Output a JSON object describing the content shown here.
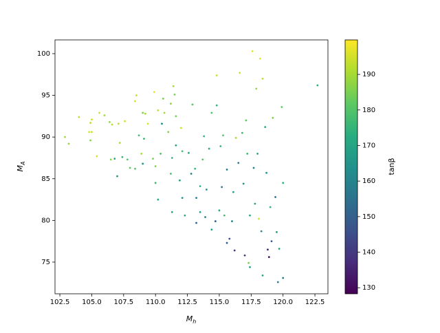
{
  "chart_data": {
    "type": "scatter",
    "xlabel": {
      "text": "M",
      "sub": "h"
    },
    "ylabel": {
      "text": "M",
      "sub": "A"
    },
    "colorbar_label": "tanβ",
    "colormap": "viridis",
    "xlim": [
      102.12,
      123.52
    ],
    "ylim": [
      71.2,
      101.65
    ],
    "clim": [
      128.3,
      199.7
    ],
    "xticks": [
      102.5,
      {
        "value": 105,
        "label": "105.0"
      },
      107.5,
      {
        "value": 110,
        "label": "110.0"
      },
      112.5,
      {
        "value": 115,
        "label": "115.0"
      },
      117.5,
      {
        "value": 120,
        "label": "120.0"
      },
      122.5
    ],
    "yticks": [
      75,
      80,
      85,
      90,
      95,
      100
    ],
    "cticks": [
      130,
      140,
      150,
      160,
      170,
      180,
      190
    ],
    "x": [
      102.9,
      103.2,
      104,
      104.8,
      105,
      104.9,
      105,
      104.9,
      105.4,
      105.6,
      106,
      106.4,
      106.6,
      107.1,
      106.5,
      107.2,
      107.6,
      106.8,
      107.0,
      107.4,
      107.8,
      108,
      108.4,
      108.4,
      108.5,
      108.7,
      108.9,
      109,
      109,
      109.2,
      109.1,
      109.4,
      109.8,
      109.9,
      110,
      110,
      110.2,
      110.2,
      110.4,
      110.5,
      110.6,
      110.7,
      111,
      111.2,
      111.3,
      111.3,
      111.4,
      111.5,
      111.6,
      111.2,
      111.6,
      111.9,
      112,
      112.1,
      112.1,
      112.3,
      112.6,
      112.8,
      112.9,
      113.1,
      113.2,
      113.2,
      113.5,
      113.5,
      113.7,
      113.8,
      113.9,
      114,
      114.2,
      114.4,
      114.4,
      114.7,
      114.8,
      114.8,
      115,
      115.1,
      115.3,
      115.4,
      115.6,
      115.6,
      115.8,
      116,
      116.1,
      116.2,
      116.3,
      116.5,
      116.6,
      116.9,
      117,
      117.1,
      117.2,
      117.3,
      117.4,
      117.6,
      117.7,
      117.8,
      117.9,
      118,
      118.1,
      118.2,
      118.3,
      118.4,
      118.6,
      118.7,
      118.8,
      118.9,
      119,
      119.2,
      119.4,
      119.5,
      119.6,
      119.7,
      119.9,
      120,
      120,
      122.7,
      118.4,
      119.1,
      117.4,
      116.8,
      115.2
    ],
    "values": [
      90,
      89.2,
      92.4,
      90.6,
      90.6,
      91.7,
      92.1,
      89.6,
      87.7,
      92.9,
      92.6,
      91.8,
      91.5,
      91.6,
      87.3,
      89.3,
      91.9,
      87.4,
      85.3,
      87.6,
      87.3,
      86.3,
      86.2,
      94.3,
      95,
      90.2,
      88,
      92.9,
      86.8,
      92.8,
      89.8,
      91.6,
      87.4,
      95.4,
      86.5,
      84.5,
      93.2,
      82.5,
      88,
      91.6,
      94.6,
      92.9,
      90.6,
      85.6,
      87.5,
      81,
      96.1,
      95.1,
      92.5,
      94,
      89,
      84.8,
      91.1,
      88.3,
      82.7,
      80.6,
      88.1,
      85.6,
      93.9,
      86.2,
      82.7,
      79.7,
      81,
      84.1,
      87.3,
      90.1,
      80.4,
      83.7,
      88.6,
      78.9,
      92.9,
      79.9,
      93.8,
      97.4,
      81.2,
      88.9,
      90.2,
      80.6,
      86.1,
      77.3,
      77.8,
      79.9,
      83.4,
      76.4,
      89.9,
      86.9,
      97.7,
      84.4,
      75.8,
      92,
      88,
      74.9,
      80.6,
      100.3,
      86.3,
      82,
      95.8,
      88,
      80.2,
      99.4,
      78.7,
      97,
      91.2,
      85.7,
      76.5,
      75.6,
      81.6,
      92.3,
      82.8,
      78.6,
      72.6,
      76.6,
      93.6,
      84.5,
      73.1,
      96.2,
      73.4,
      77.5,
      74.4,
      90.5,
      84
    ],
    "c": [
      190,
      188,
      192,
      195,
      193,
      192,
      194,
      186,
      196,
      194,
      190,
      188,
      192,
      192,
      186,
      190,
      194,
      170,
      165,
      175,
      180,
      182,
      180,
      196,
      194,
      178,
      190,
      185,
      165,
      190,
      175,
      195,
      185,
      197,
      186,
      176,
      192,
      172,
      180,
      160,
      185,
      190,
      186,
      178,
      175,
      170,
      190,
      185,
      184,
      187,
      170,
      170,
      194,
      178,
      165,
      172,
      172,
      160,
      180,
      175,
      160,
      150,
      168,
      175,
      180,
      175,
      160,
      165,
      172,
      168,
      180,
      150,
      175,
      194,
      172,
      175,
      180,
      178,
      160,
      150,
      145,
      162,
      168,
      140,
      190,
      158,
      194,
      165,
      140,
      182,
      176,
      185,
      170,
      196,
      160,
      170,
      188,
      170,
      195,
      197,
      162,
      192,
      170,
      165,
      135,
      130,
      175,
      185,
      155,
      168,
      160,
      170,
      182,
      175,
      158,
      175,
      170,
      150,
      168,
      176,
      158
    ]
  }
}
